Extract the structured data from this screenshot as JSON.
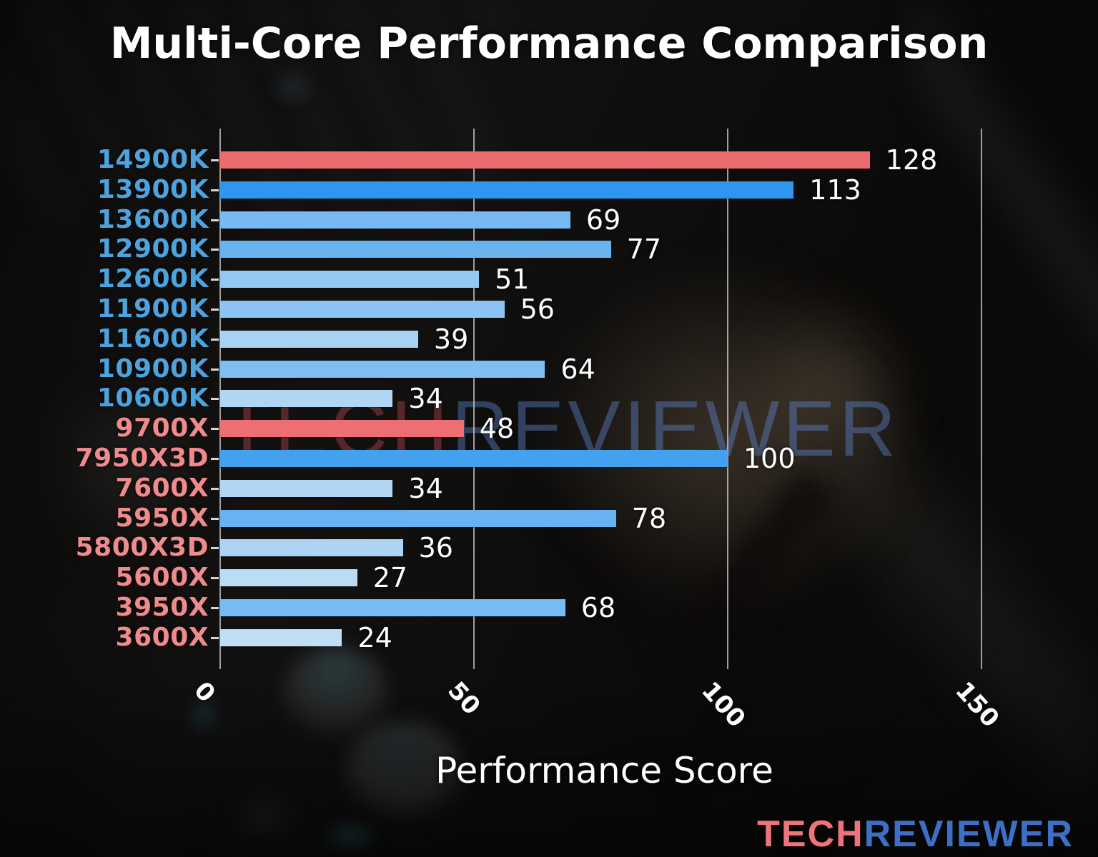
{
  "title": "Multi-Core Performance Comparison",
  "watermark": {
    "tech": "TECH",
    "reviewer": "REVIEWER"
  },
  "footer_logo": {
    "tech": "TECH",
    "reviewer": "REVIEWER"
  },
  "chart_data": {
    "type": "bar",
    "orientation": "horizontal",
    "title": "Multi-Core Performance Comparison",
    "xlabel": "Performance Score",
    "xlim": [
      0,
      160
    ],
    "xticks": [
      0,
      50,
      100,
      150
    ],
    "grid": true,
    "legend": "none",
    "colors": {
      "intel_label": "#4da3de",
      "amd_label": "#f08b8d",
      "highlight_red": "#ed6d71",
      "value_label": "#ffffff",
      "gridline": "#d0d0d0"
    },
    "bars": [
      {
        "label": "14900K",
        "value": 128,
        "bar_color": "#ec6b6f",
        "label_color": "#4da3de"
      },
      {
        "label": "13900K",
        "value": 113,
        "bar_color": "#2e96ee",
        "label_color": "#4da3de"
      },
      {
        "label": "13600K",
        "value": 69,
        "bar_color": "#76baf1",
        "label_color": "#4da3de"
      },
      {
        "label": "12900K",
        "value": 77,
        "bar_color": "#69b3f1",
        "label_color": "#4da3de"
      },
      {
        "label": "12600K",
        "value": 51,
        "bar_color": "#94c8f3",
        "label_color": "#4da3de"
      },
      {
        "label": "11900K",
        "value": 56,
        "bar_color": "#8bc4f2",
        "label_color": "#4da3de"
      },
      {
        "label": "11600K",
        "value": 39,
        "bar_color": "#a7d2f4",
        "label_color": "#4da3de"
      },
      {
        "label": "10900K",
        "value": 64,
        "bar_color": "#7ebef2",
        "label_color": "#4da3de"
      },
      {
        "label": "10600K",
        "value": 34,
        "bar_color": "#b0d6f4",
        "label_color": "#4da3de"
      },
      {
        "label": "9700X",
        "value": 48,
        "bar_color": "#ed6f73",
        "label_color": "#f08b8d"
      },
      {
        "label": "7950X3D",
        "value": 100,
        "bar_color": "#43a1ef",
        "label_color": "#f08b8d"
      },
      {
        "label": "7600X",
        "value": 34,
        "bar_color": "#b0d6f4",
        "label_color": "#f08b8d"
      },
      {
        "label": "5950X",
        "value": 78,
        "bar_color": "#67b2f1",
        "label_color": "#f08b8d"
      },
      {
        "label": "5800X3D",
        "value": 36,
        "bar_color": "#acd4f4",
        "label_color": "#f08b8d"
      },
      {
        "label": "5600X",
        "value": 27,
        "bar_color": "#bbdcf5",
        "label_color": "#f08b8d"
      },
      {
        "label": "3950X",
        "value": 68,
        "bar_color": "#78baf2",
        "label_color": "#f08b8d"
      },
      {
        "label": "3600X",
        "value": 24,
        "bar_color": "#c0def5",
        "label_color": "#f08b8d"
      }
    ]
  }
}
